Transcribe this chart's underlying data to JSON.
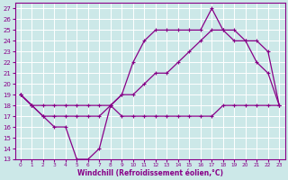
{
  "bg_color": "#cce8e8",
  "grid_color": "#ffffff",
  "line_color": "#880088",
  "xlim": [
    -0.5,
    23.5
  ],
  "ylim": [
    13,
    27.5
  ],
  "xticks": [
    0,
    1,
    2,
    3,
    4,
    5,
    6,
    7,
    8,
    9,
    10,
    11,
    12,
    13,
    14,
    15,
    16,
    17,
    18,
    19,
    20,
    21,
    22,
    23
  ],
  "yticks": [
    13,
    14,
    15,
    16,
    17,
    18,
    19,
    20,
    21,
    22,
    23,
    24,
    25,
    26,
    27
  ],
  "xlabel": "Windchill (Refroidissement éolien,°C)",
  "curve1_x": [
    0,
    1,
    2,
    3,
    4,
    5,
    6,
    7,
    8,
    9,
    10,
    11,
    12,
    13,
    14,
    15,
    16,
    17,
    18,
    19,
    20,
    21,
    22,
    23
  ],
  "curve1_y": [
    19,
    18,
    17,
    16,
    16,
    13,
    13,
    14,
    18,
    17,
    17,
    17,
    17,
    17,
    17,
    17,
    17,
    17,
    18,
    18,
    18,
    18,
    18,
    18
  ],
  "curve2_x": [
    0,
    1,
    2,
    3,
    4,
    5,
    6,
    7,
    8,
    9,
    10,
    11,
    12,
    13,
    14,
    15,
    16,
    17,
    18,
    19,
    20,
    21,
    22,
    23
  ],
  "curve2_y": [
    19,
    18,
    18,
    18,
    18,
    18,
    18,
    18,
    18,
    19,
    19,
    20,
    21,
    21,
    22,
    23,
    24,
    25,
    25,
    25,
    24,
    24,
    23,
    18
  ],
  "curve3_x": [
    0,
    1,
    2,
    3,
    4,
    5,
    6,
    7,
    8,
    9,
    10,
    11,
    12,
    13,
    14,
    15,
    16,
    17,
    18,
    19,
    20,
    21,
    22,
    23
  ],
  "curve3_y": [
    19,
    18,
    17,
    17,
    17,
    17,
    17,
    17,
    18,
    19,
    22,
    24,
    25,
    25,
    25,
    25,
    25,
    27,
    25,
    24,
    24,
    22,
    21,
    18
  ]
}
